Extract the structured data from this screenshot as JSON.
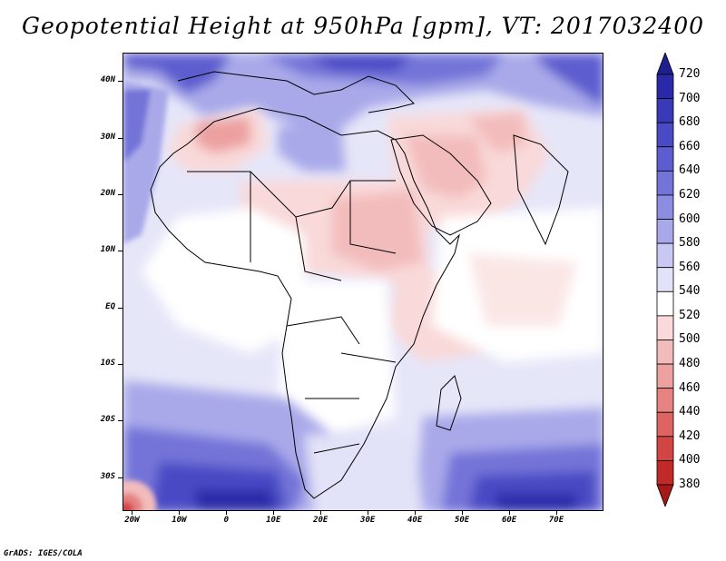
{
  "title": "Geopotential Height at 950hPa [gpm], VT: 2017032400",
  "footer": "GrADS: IGES/COLA",
  "map": {
    "lat_labels": [
      {
        "text": "40N",
        "lat": 40
      },
      {
        "text": "30N",
        "lat": 30
      },
      {
        "text": "20N",
        "lat": 20
      },
      {
        "text": "10N",
        "lat": 10
      },
      {
        "text": "EQ",
        "lat": 0
      },
      {
        "text": "10S",
        "lat": -10
      },
      {
        "text": "20S",
        "lat": -20
      },
      {
        "text": "30S",
        "lat": -30
      }
    ],
    "lon_labels": [
      {
        "text": "20W",
        "lon": -20
      },
      {
        "text": "10W",
        "lon": -10
      },
      {
        "text": "0",
        "lon": 0
      },
      {
        "text": "10E",
        "lon": 10
      },
      {
        "text": "20E",
        "lon": 20
      },
      {
        "text": "30E",
        "lon": 30
      },
      {
        "text": "40E",
        "lon": 40
      },
      {
        "text": "50E",
        "lon": 50
      },
      {
        "text": "60E",
        "lon": 60
      },
      {
        "text": "70E",
        "lon": 70
      }
    ],
    "lon_range": [
      -22,
      80
    ],
    "lat_range": [
      -36,
      45
    ]
  },
  "colorbar": {
    "levels": [
      "720",
      "700",
      "680",
      "660",
      "640",
      "620",
      "600",
      "580",
      "560",
      "540",
      "520",
      "500",
      "480",
      "460",
      "440",
      "420",
      "400",
      "380"
    ],
    "colors": [
      "#1f1f8f",
      "#2a2aa8",
      "#3a3ab8",
      "#4a4ac4",
      "#5d5dcf",
      "#7373d8",
      "#8c8ce0",
      "#a9a9ea",
      "#c8c8f2",
      "#e2e2f8",
      "#ffffff",
      "#f9d9d9",
      "#f3bcbc",
      "#eda0a0",
      "#e68282",
      "#de6464",
      "#d24545",
      "#c22a2a",
      "#a81818"
    ]
  }
}
